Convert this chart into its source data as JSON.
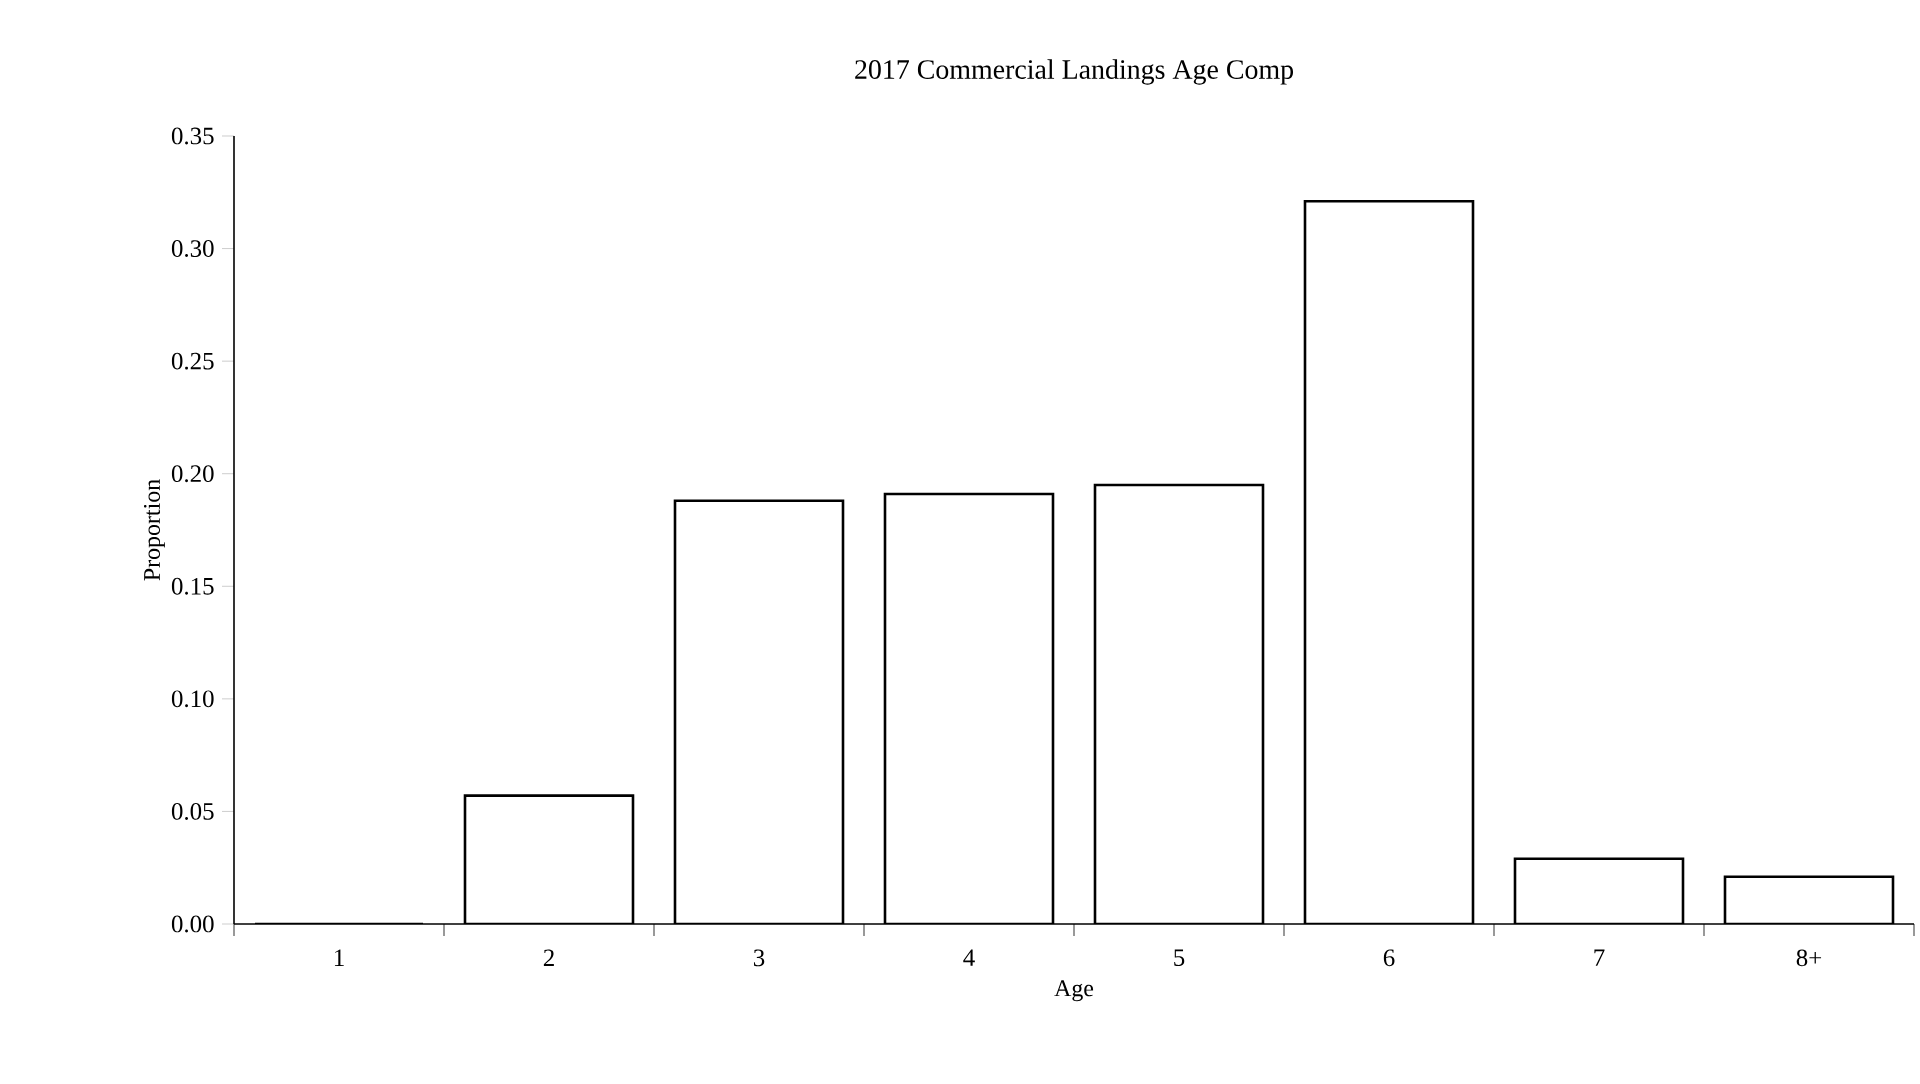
{
  "chart_data": {
    "type": "bar",
    "title": "2017 Commercial Landings Age Comp",
    "xlabel": "Age",
    "ylabel": "Proportion",
    "categories": [
      "1",
      "2",
      "3",
      "4",
      "5",
      "6",
      "7",
      "8+"
    ],
    "values": [
      0,
      0.057,
      0.188,
      0.191,
      0.195,
      0.321,
      0.029,
      0.021
    ],
    "color": "#ffffff",
    "ylim": [
      0,
      0.35
    ],
    "yticks": [
      {
        "value": 0,
        "label": "0.00"
      },
      {
        "value": 0.05,
        "label": "0.05"
      },
      {
        "value": 0.1,
        "label": "0.10"
      },
      {
        "value": 0.15,
        "label": "0.15"
      },
      {
        "value": 0.2,
        "label": "0.20"
      },
      {
        "value": 0.25,
        "label": "0.25"
      },
      {
        "value": 0.3,
        "label": "0.30"
      },
      {
        "value": 0.35,
        "label": "0.35"
      }
    ]
  }
}
